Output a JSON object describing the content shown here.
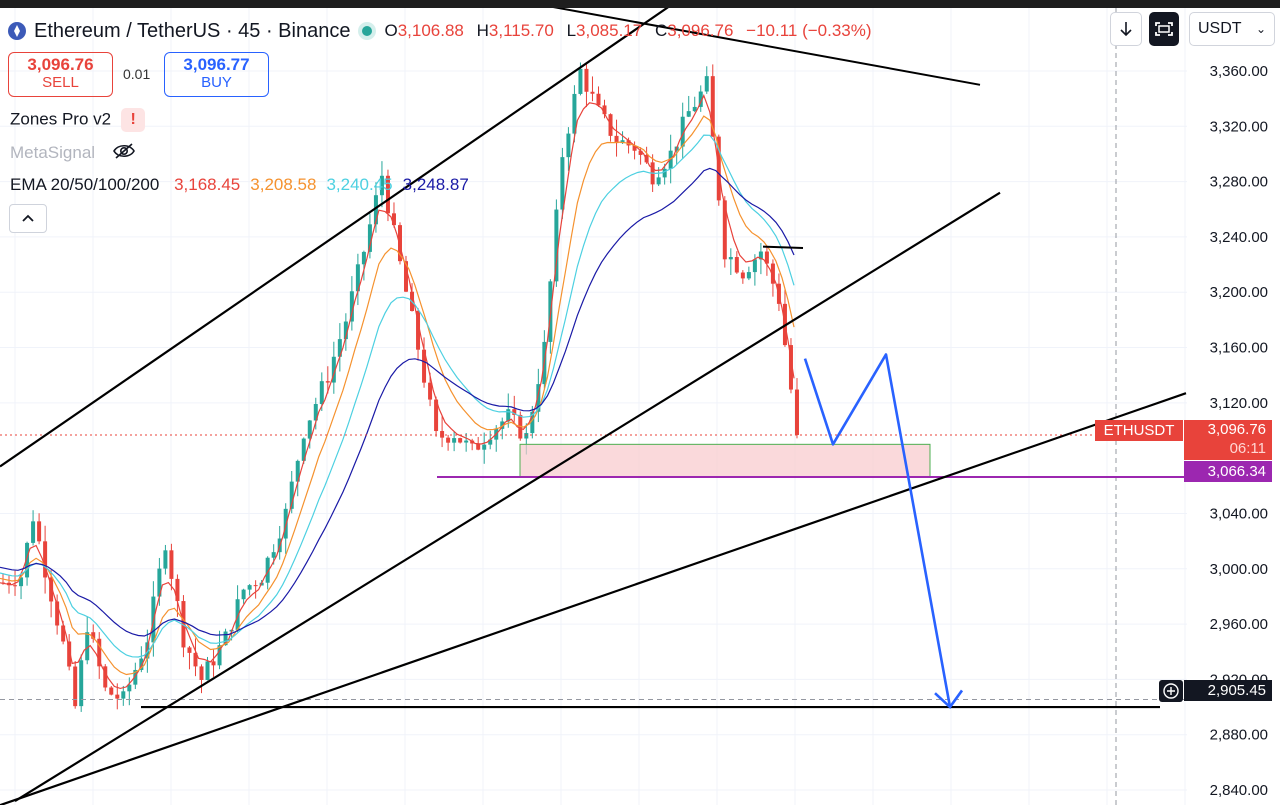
{
  "header": {
    "symbol": "Ethereum / TetherUS · 45 · Binance",
    "ohlc": {
      "o_label": "O",
      "o": "3,106.88",
      "h_label": "H",
      "h": "3,115.70",
      "l_label": "L",
      "l": "3,085.17",
      "c_label": "C",
      "c": "3,096.76",
      "change": "−10.11 (−0.33%)"
    }
  },
  "trade": {
    "sell_price": "3,096.76",
    "sell_label": "SELL",
    "spread": "0.01",
    "buy_price": "3,096.77",
    "buy_label": "BUY"
  },
  "indicators": {
    "zones": "Zones Pro v2",
    "zones_warning": "!",
    "metasignal": "MetaSignal",
    "ema_label": "EMA 20/50/100/200",
    "ema_values": [
      "3,168.45",
      "3,208.58",
      "3,240.45",
      "3,248.87"
    ],
    "ema_colors": [
      "#e8433b",
      "#f5922f",
      "#4dd0e1",
      "#1a1aa6"
    ]
  },
  "toolbar": {
    "currency": "USDT",
    "download_icon": "download-icon",
    "fullscreen_icon": "fullscreen-icon",
    "collapse_icon": "chevron-up-icon"
  },
  "price_labels": {
    "symbol_tag": "ETHUSDT",
    "last_price": "3,096.76",
    "countdown": "06:11",
    "purple_level": "3,066.34",
    "crosshair_price": "2,905.45"
  },
  "colors": {
    "up": "#26a69a",
    "down": "#e8433b",
    "projection": "#2962ff",
    "support_line": "#9c27b0",
    "zone_fill": "#f8c9cc",
    "zone_border": "#4caf50"
  },
  "chart_data": {
    "type": "candlestick",
    "instrument": "ETHUSDT",
    "interval": "45",
    "yaxis_ticks": [
      "3,360.00",
      "3,320.00",
      "3,280.00",
      "3,240.00",
      "3,200.00",
      "3,160.00",
      "3,120.00",
      "3,040.00",
      "3,000.00",
      "2,960.00",
      "2,920.00",
      "2,880.00",
      "2,840.00"
    ],
    "ylim": [
      2830,
      3395
    ],
    "price_path": [
      [
        0,
        2990
      ],
      [
        3,
        2995
      ],
      [
        5,
        3038
      ],
      [
        7,
        3000
      ],
      [
        10,
        2945
      ],
      [
        12,
        2900
      ],
      [
        14,
        2960
      ],
      [
        17,
        2912
      ],
      [
        20,
        2905
      ],
      [
        24,
        2950
      ],
      [
        27,
        3020
      ],
      [
        30,
        2950
      ],
      [
        33,
        2920
      ],
      [
        37,
        2950
      ],
      [
        40,
        2985
      ],
      [
        43,
        2995
      ],
      [
        47,
        3040
      ],
      [
        50,
        3100
      ],
      [
        54,
        3140
      ],
      [
        57,
        3180
      ],
      [
        60,
        3230
      ],
      [
        63,
        3285
      ],
      [
        66,
        3220
      ],
      [
        69,
        3160
      ],
      [
        72,
        3095
      ],
      [
        75,
        3098
      ],
      [
        78,
        3085
      ],
      [
        81,
        3100
      ],
      [
        84,
        3110
      ],
      [
        87,
        3095
      ],
      [
        90,
        3160
      ],
      [
        93,
        3300
      ],
      [
        96,
        3360
      ],
      [
        99,
        3330
      ],
      [
        102,
        3310
      ],
      [
        105,
        3305
      ],
      [
        108,
        3285
      ],
      [
        111,
        3300
      ],
      [
        114,
        3330
      ],
      [
        117,
        3350
      ],
      [
        120,
        3230
      ],
      [
        123,
        3215
      ],
      [
        126,
        3230
      ],
      [
        129,
        3195
      ],
      [
        132,
        3097
      ]
    ],
    "ema_series": [
      {
        "name": "EMA 20",
        "last": 3168.45
      },
      {
        "name": "EMA 50",
        "last": 3208.58
      },
      {
        "name": "EMA 100",
        "last": 3240.45
      },
      {
        "name": "EMA 200",
        "last": 3248.87
      }
    ],
    "levels": {
      "purple_support": 3066.34,
      "last_price": 3096.76,
      "crosshair": 2905.45,
      "bottom_target": 2900
    },
    "demand_zone": {
      "from": 3066.34,
      "to": 3090
    },
    "projection": [
      [
        3152
      ],
      [
        3090
      ],
      [
        3155
      ],
      [
        2900
      ]
    ]
  }
}
